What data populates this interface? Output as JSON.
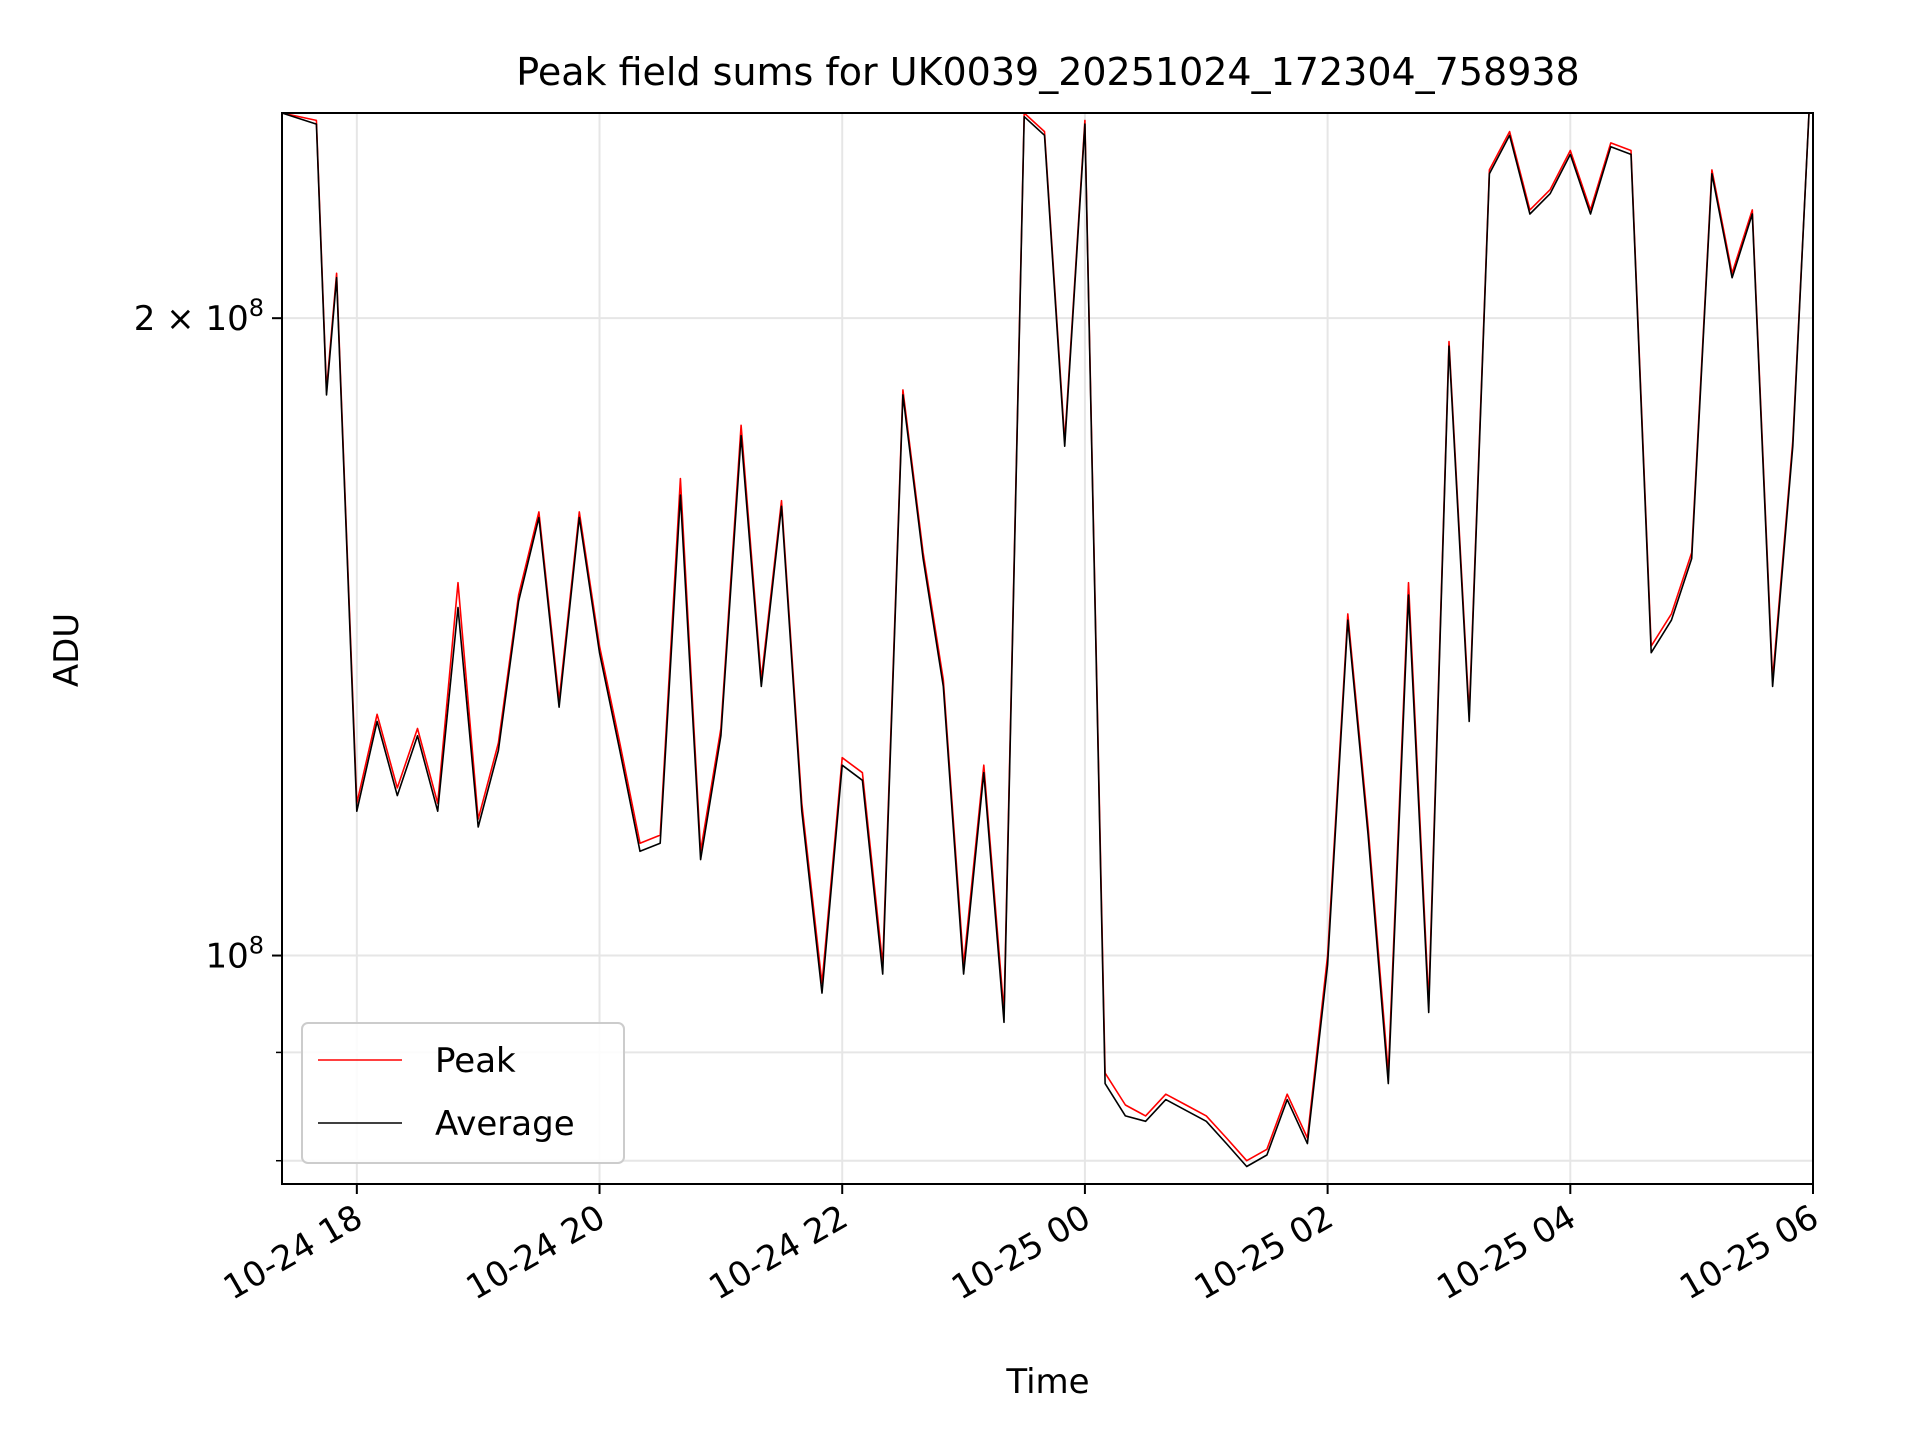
{
  "chart_data": {
    "type": "line",
    "title": "Peak field sums for UK0039_20251024_172304_758938",
    "xlabel": "Time",
    "ylabel": "ADU",
    "y_scale": "log",
    "xlim": [
      "2025-10-24 17:23",
      "2025-10-25 06:00"
    ],
    "ylim": [
      78000000,
      250000000
    ],
    "grid": true,
    "legend_position": "bottom-left",
    "x_ticks": [
      {
        "label": "10-24 18",
        "value": "2025-10-24 18:00"
      },
      {
        "label": "10-24 20",
        "value": "2025-10-24 20:00"
      },
      {
        "label": "10-24 22",
        "value": "2025-10-24 22:00"
      },
      {
        "label": "10-25 00",
        "value": "2025-10-25 00:00"
      },
      {
        "label": "10-25 02",
        "value": "2025-10-25 02:00"
      },
      {
        "label": "10-25 04",
        "value": "2025-10-25 04:00"
      },
      {
        "label": "10-25 06",
        "value": "2025-10-25 06:00"
      }
    ],
    "y_major_ticks": [
      {
        "label": "2 × 10^8",
        "value": 200000000
      },
      {
        "label": "10^8",
        "value": 100000000
      }
    ],
    "y_minor_grid": [
      80000000,
      90000000
    ],
    "series": [
      {
        "name": "Peak",
        "color": "#ff0000",
        "points": [
          [
            "2025-10-24 17:23",
            250000000
          ],
          [
            "2025-10-24 17:40",
            248000000
          ],
          [
            "2025-10-24 17:45",
            185000000
          ],
          [
            "2025-10-24 17:50",
            210000000
          ],
          [
            "2025-10-24 18:00",
            118000000
          ],
          [
            "2025-10-24 18:10",
            130000000
          ],
          [
            "2025-10-24 18:20",
            120000000
          ],
          [
            "2025-10-24 18:30",
            128000000
          ],
          [
            "2025-10-24 18:40",
            118000000
          ],
          [
            "2025-10-24 18:50",
            150000000
          ],
          [
            "2025-10-24 19:00",
            116000000
          ],
          [
            "2025-10-24 19:10",
            126000000
          ],
          [
            "2025-10-24 19:20",
            148000000
          ],
          [
            "2025-10-24 19:30",
            162000000
          ],
          [
            "2025-10-24 19:40",
            132000000
          ],
          [
            "2025-10-24 19:50",
            162000000
          ],
          [
            "2025-10-24 20:00",
            140000000
          ],
          [
            "2025-10-24 20:10",
            126000000
          ],
          [
            "2025-10-24 20:20",
            113000000
          ],
          [
            "2025-10-24 20:30",
            114000000
          ],
          [
            "2025-10-24 20:40",
            168000000
          ],
          [
            "2025-10-24 20:50",
            112000000
          ],
          [
            "2025-10-24 21:00",
            128000000
          ],
          [
            "2025-10-24 21:10",
            178000000
          ],
          [
            "2025-10-24 21:20",
            135000000
          ],
          [
            "2025-10-24 21:30",
            164000000
          ],
          [
            "2025-10-24 21:40",
            118000000
          ],
          [
            "2025-10-24 21:50",
            97000000
          ],
          [
            "2025-10-24 22:00",
            124000000
          ],
          [
            "2025-10-24 22:10",
            122000000
          ],
          [
            "2025-10-24 22:20",
            99000000
          ],
          [
            "2025-10-24 22:30",
            185000000
          ],
          [
            "2025-10-24 22:40",
            155000000
          ],
          [
            "2025-10-24 22:50",
            135000000
          ],
          [
            "2025-10-24 23:00",
            99000000
          ],
          [
            "2025-10-24 23:10",
            123000000
          ],
          [
            "2025-10-24 23:20",
            94000000
          ],
          [
            "2025-10-24 23:30",
            250000000
          ],
          [
            "2025-10-24 23:40",
            245000000
          ],
          [
            "2025-10-24 23:50",
            175000000
          ],
          [
            "2025-10-25 00:00",
            248000000
          ],
          [
            "2025-10-25 00:10",
            88000000
          ],
          [
            "2025-10-25 00:20",
            85000000
          ],
          [
            "2025-10-25 00:30",
            84000000
          ],
          [
            "2025-10-25 00:40",
            86000000
          ],
          [
            "2025-10-25 00:50",
            85000000
          ],
          [
            "2025-10-25 01:00",
            84000000
          ],
          [
            "2025-10-25 01:10",
            82000000
          ],
          [
            "2025-10-25 01:20",
            80000000
          ],
          [
            "2025-10-25 01:30",
            81000000
          ],
          [
            "2025-10-25 01:40",
            86000000
          ],
          [
            "2025-10-25 01:50",
            82000000
          ],
          [
            "2025-10-25 02:00",
            100000000
          ],
          [
            "2025-10-25 02:10",
            145000000
          ],
          [
            "2025-10-25 02:20",
            115000000
          ],
          [
            "2025-10-25 02:30",
            88000000
          ],
          [
            "2025-10-25 02:40",
            150000000
          ],
          [
            "2025-10-25 02:50",
            95000000
          ],
          [
            "2025-10-25 03:00",
            195000000
          ],
          [
            "2025-10-25 03:10",
            130000000
          ],
          [
            "2025-10-25 03:20",
            235000000
          ],
          [
            "2025-10-25 03:30",
            245000000
          ],
          [
            "2025-10-25 03:40",
            225000000
          ],
          [
            "2025-10-25 03:50",
            230000000
          ],
          [
            "2025-10-25 04:00",
            240000000
          ],
          [
            "2025-10-25 04:10",
            225000000
          ],
          [
            "2025-10-25 04:20",
            242000000
          ],
          [
            "2025-10-25 04:30",
            240000000
          ],
          [
            "2025-10-25 04:40",
            140000000
          ],
          [
            "2025-10-25 04:50",
            145000000
          ],
          [
            "2025-10-25 05:00",
            155000000
          ],
          [
            "2025-10-25 05:10",
            235000000
          ],
          [
            "2025-10-25 05:20",
            210000000
          ],
          [
            "2025-10-25 05:30",
            225000000
          ],
          [
            "2025-10-25 05:40",
            135000000
          ],
          [
            "2025-10-25 05:50",
            175000000
          ],
          [
            "2025-10-25 05:58",
            250000000
          ]
        ]
      },
      {
        "name": "Average",
        "color": "#000000",
        "points": [
          [
            "2025-10-24 17:23",
            250000000
          ],
          [
            "2025-10-24 17:40",
            247000000
          ],
          [
            "2025-10-24 17:45",
            184000000
          ],
          [
            "2025-10-24 17:50",
            209000000
          ],
          [
            "2025-10-24 18:00",
            117000000
          ],
          [
            "2025-10-24 18:10",
            129000000
          ],
          [
            "2025-10-24 18:20",
            119000000
          ],
          [
            "2025-10-24 18:30",
            127000000
          ],
          [
            "2025-10-24 18:40",
            117000000
          ],
          [
            "2025-10-24 18:50",
            146000000
          ],
          [
            "2025-10-24 19:00",
            115000000
          ],
          [
            "2025-10-24 19:10",
            125000000
          ],
          [
            "2025-10-24 19:20",
            147000000
          ],
          [
            "2025-10-24 19:30",
            161000000
          ],
          [
            "2025-10-24 19:40",
            131000000
          ],
          [
            "2025-10-24 19:50",
            161000000
          ],
          [
            "2025-10-24 20:00",
            139000000
          ],
          [
            "2025-10-24 20:10",
            125000000
          ],
          [
            "2025-10-24 20:20",
            112000000
          ],
          [
            "2025-10-24 20:30",
            113000000
          ],
          [
            "2025-10-24 20:40",
            165000000
          ],
          [
            "2025-10-24 20:50",
            111000000
          ],
          [
            "2025-10-24 21:00",
            127000000
          ],
          [
            "2025-10-24 21:10",
            176000000
          ],
          [
            "2025-10-24 21:20",
            134000000
          ],
          [
            "2025-10-24 21:30",
            163000000
          ],
          [
            "2025-10-24 21:40",
            117000000
          ],
          [
            "2025-10-24 21:50",
            96000000
          ],
          [
            "2025-10-24 22:00",
            123000000
          ],
          [
            "2025-10-24 22:10",
            121000000
          ],
          [
            "2025-10-24 22:20",
            98000000
          ],
          [
            "2025-10-24 22:30",
            184000000
          ],
          [
            "2025-10-24 22:40",
            154000000
          ],
          [
            "2025-10-24 22:50",
            134000000
          ],
          [
            "2025-10-24 23:00",
            98000000
          ],
          [
            "2025-10-24 23:10",
            122000000
          ],
          [
            "2025-10-24 23:20",
            93000000
          ],
          [
            "2025-10-24 23:30",
            249000000
          ],
          [
            "2025-10-24 23:40",
            244000000
          ],
          [
            "2025-10-24 23:50",
            174000000
          ],
          [
            "2025-10-25 00:00",
            247000000
          ],
          [
            "2025-10-25 00:10",
            87000000
          ],
          [
            "2025-10-25 00:20",
            84000000
          ],
          [
            "2025-10-25 00:30",
            83500000
          ],
          [
            "2025-10-25 00:40",
            85500000
          ],
          [
            "2025-10-25 00:50",
            84500000
          ],
          [
            "2025-10-25 01:00",
            83500000
          ],
          [
            "2025-10-25 01:10",
            81500000
          ],
          [
            "2025-10-25 01:20",
            79500000
          ],
          [
            "2025-10-25 01:30",
            80500000
          ],
          [
            "2025-10-25 01:40",
            85500000
          ],
          [
            "2025-10-25 01:50",
            81500000
          ],
          [
            "2025-10-25 02:00",
            99000000
          ],
          [
            "2025-10-25 02:10",
            144000000
          ],
          [
            "2025-10-25 02:20",
            114000000
          ],
          [
            "2025-10-25 02:30",
            87000000
          ],
          [
            "2025-10-25 02:40",
            148000000
          ],
          [
            "2025-10-25 02:50",
            94000000
          ],
          [
            "2025-10-25 03:00",
            194000000
          ],
          [
            "2025-10-25 03:10",
            129000000
          ],
          [
            "2025-10-25 03:20",
            234000000
          ],
          [
            "2025-10-25 03:30",
            244000000
          ],
          [
            "2025-10-25 03:40",
            224000000
          ],
          [
            "2025-10-25 03:50",
            229000000
          ],
          [
            "2025-10-25 04:00",
            239000000
          ],
          [
            "2025-10-25 04:10",
            224000000
          ],
          [
            "2025-10-25 04:20",
            241000000
          ],
          [
            "2025-10-25 04:30",
            239000000
          ],
          [
            "2025-10-25 04:40",
            139000000
          ],
          [
            "2025-10-25 04:50",
            144000000
          ],
          [
            "2025-10-25 05:00",
            154000000
          ],
          [
            "2025-10-25 05:10",
            234000000
          ],
          [
            "2025-10-25 05:20",
            209000000
          ],
          [
            "2025-10-25 05:30",
            224000000
          ],
          [
            "2025-10-25 05:40",
            134000000
          ],
          [
            "2025-10-25 05:50",
            174000000
          ],
          [
            "2025-10-25 05:58",
            250000000
          ]
        ]
      }
    ]
  }
}
